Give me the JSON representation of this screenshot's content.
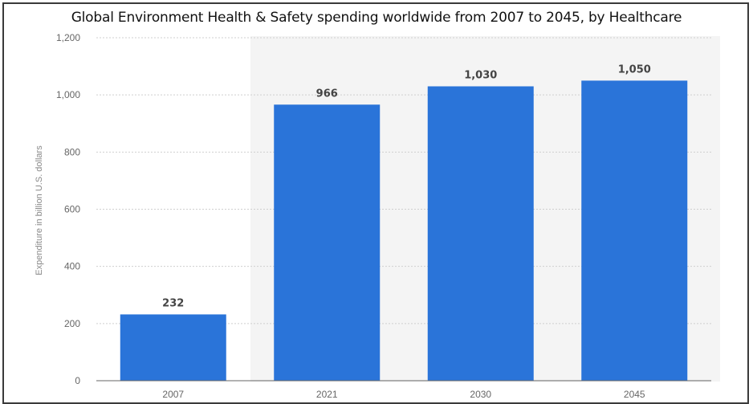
{
  "chart_data": {
    "type": "bar",
    "title": "Global Environment Health & Safety spending worldwide from 2007 to 2045, by Healthcare",
    "xlabel": "",
    "ylabel": "Expenditure in billion U.S. dollars",
    "categories": [
      "2007",
      "2021",
      "2030",
      "2045"
    ],
    "values": [
      232,
      966,
      1030,
      1050
    ],
    "value_labels": [
      "232",
      "966",
      "1,030",
      "1,050"
    ],
    "ylim": [
      0,
      1200
    ],
    "y_ticks": [
      0,
      200,
      400,
      600,
      800,
      1000,
      1200
    ],
    "y_tick_labels": [
      "0",
      "200",
      "400",
      "600",
      "800",
      "1,000",
      "1,200"
    ],
    "grid": true,
    "bar_color": "#2a74d9"
  }
}
